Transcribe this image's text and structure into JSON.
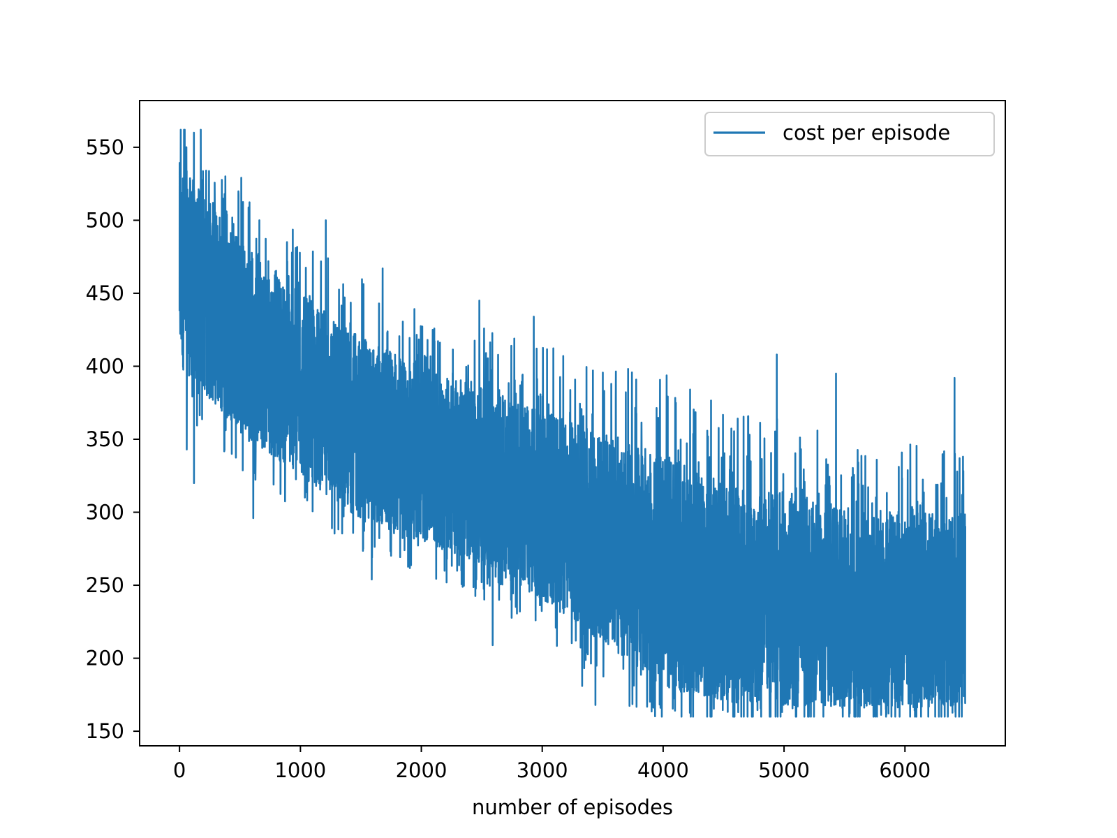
{
  "chart_data": {
    "type": "line",
    "title": "",
    "xlabel": "number of episodes",
    "ylabel": "",
    "xlim": [
      -330,
      6830
    ],
    "ylim": [
      140,
      582
    ],
    "x_ticks": [
      0,
      1000,
      2000,
      3000,
      4000,
      5000,
      6000
    ],
    "y_ticks": [
      150,
      200,
      250,
      300,
      350,
      400,
      450,
      500,
      550
    ],
    "x_tick_labels": [
      "0",
      "1000",
      "2000",
      "3000",
      "4000",
      "5000",
      "6000"
    ],
    "y_tick_labels": [
      "150",
      "200",
      "250",
      "300",
      "350",
      "400",
      "450",
      "500",
      "550"
    ],
    "grid": false,
    "legend_position": "top-right",
    "series": [
      {
        "name": "cost per episode",
        "color": "#1f77b4",
        "n_points": 6500,
        "trend_x": [
          0,
          500,
          1000,
          1500,
          2000,
          2500,
          3000,
          3500,
          4000,
          4500,
          5000,
          5500,
          6000,
          6500
        ],
        "trend_low": [
          400,
          355,
          325,
          295,
          280,
          265,
          240,
          210,
          180,
          170,
          168,
          167,
          166,
          167
        ],
        "trend_high": [
          540,
          490,
          450,
          420,
          400,
          385,
          370,
          355,
          340,
          320,
          315,
          305,
          300,
          300
        ],
        "min": 160,
        "max": 562,
        "peaks": [
          {
            "x": 10,
            "y": 562
          },
          {
            "x": 220,
            "y": 534
          },
          {
            "x": 660,
            "y": 500
          },
          {
            "x": 1210,
            "y": 500
          },
          {
            "x": 1680,
            "y": 467
          },
          {
            "x": 2480,
            "y": 445
          },
          {
            "x": 2930,
            "y": 434
          },
          {
            "x": 3440,
            "y": 414
          },
          {
            "x": 4940,
            "y": 408
          },
          {
            "x": 5430,
            "y": 395
          },
          {
            "x": 6410,
            "y": 392
          }
        ],
        "troughs": [
          {
            "x": 60,
            "y": 343
          },
          {
            "x": 120,
            "y": 320
          },
          {
            "x": 610,
            "y": 296
          },
          {
            "x": 1590,
            "y": 254
          },
          {
            "x": 2590,
            "y": 209
          },
          {
            "x": 3330,
            "y": 181
          },
          {
            "x": 3440,
            "y": 168
          },
          {
            "x": 4590,
            "y": 160
          },
          {
            "x": 5920,
            "y": 160
          }
        ]
      }
    ]
  }
}
